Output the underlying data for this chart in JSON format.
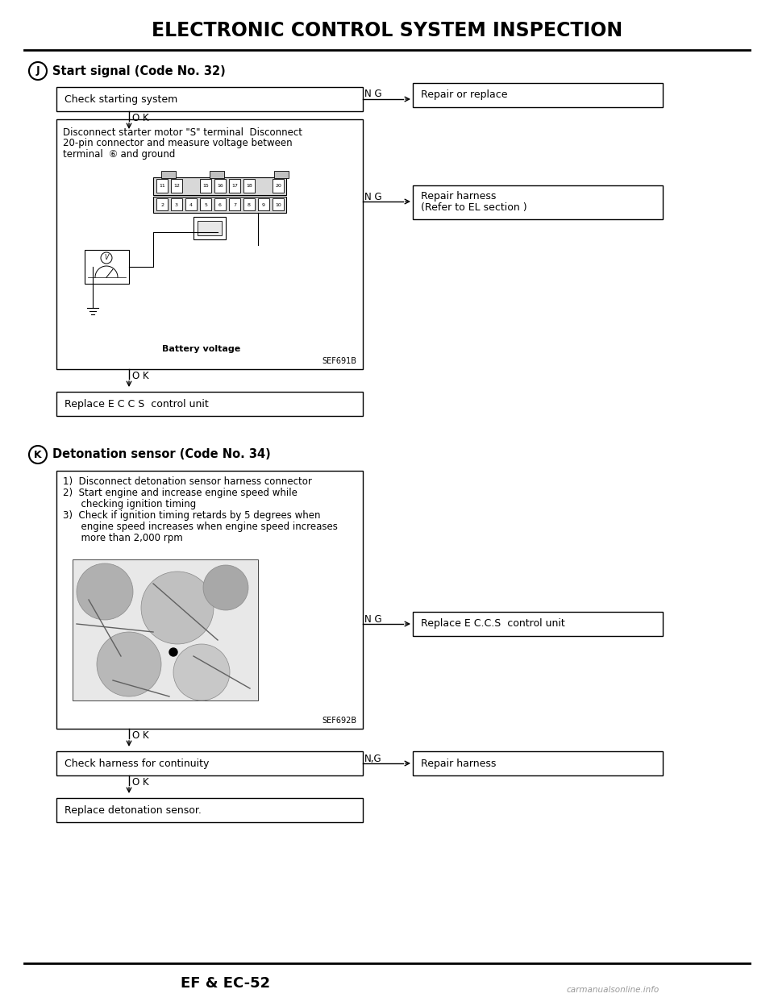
{
  "title": "ELECTRONIC CONTROL SYSTEM INSPECTION",
  "page_number": "EF & EC-52",
  "watermark": "carmanualsonline.info",
  "bg_color": "#ffffff",
  "section_j": {
    "label": "J",
    "heading": "Start signal (Code No. 32)",
    "box1": "Check starting system",
    "box1_ng_label": "N G",
    "box1_ng_target": "Repair or replace",
    "box1_ok_label": "O K",
    "box2_lines": [
      "Disconnect starter motor \"S\" terminal  Disconnect",
      "20-pin connector and measure voltage between",
      "terminal  ⑥ and ground"
    ],
    "box2_ng_label": "N G",
    "box2_ng_target1": "Repair harness",
    "box2_ng_target2": "(Refer to EL section )",
    "box2_label": "Battery voltage",
    "box2_ref": "SEF691B",
    "box2_ok_label": "O K",
    "box3": "Replace E C C S  control unit"
  },
  "section_k": {
    "label": "K",
    "heading": "Detonation sensor (Code No. 34)",
    "box1_lines": [
      "1)  Disconnect detonation sensor harness connector",
      "2)  Start engine and increase engine speed while",
      "      checking ignition timing",
      "3)  Check if ignition timing retards by 5 degrees when",
      "      engine speed increases when engine speed increases",
      "      more than 2,000 rpm"
    ],
    "box1_ng_label": "N G",
    "box1_ng_target": "Replace E C.C.S  control unit",
    "box1_ref": "SEF692B",
    "box1_ok_label": "O K",
    "box2": "Check harness for continuity",
    "box2_ng_label": "N,G",
    "box2_ng_target": "Repair harness",
    "box2_ok_label": "O K",
    "box3": "Replace detonation sensor."
  }
}
